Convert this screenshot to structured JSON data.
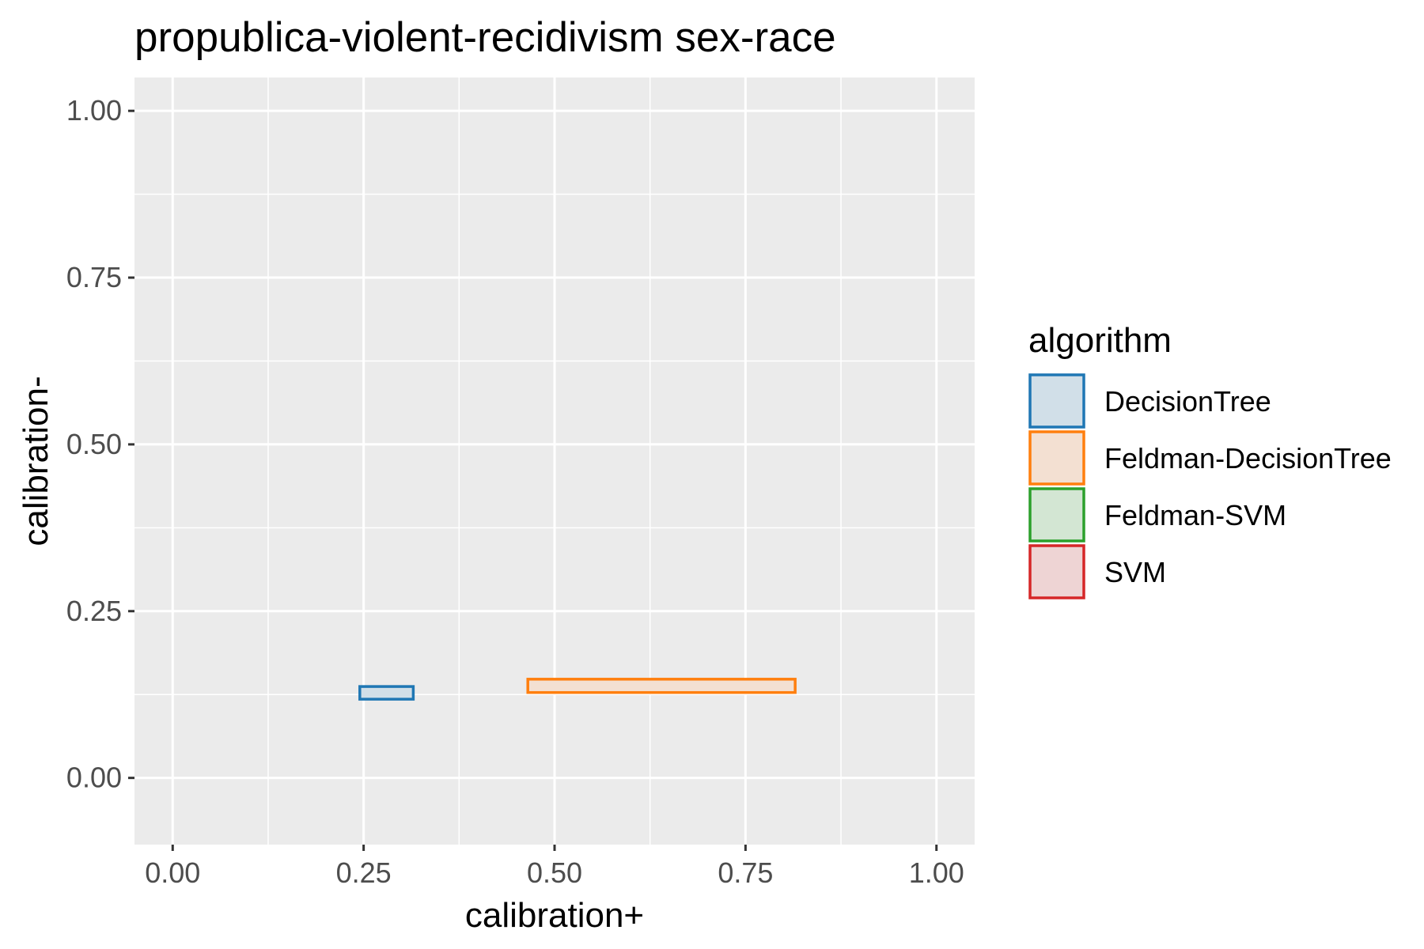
{
  "chart_data": {
    "type": "box",
    "title": "propublica-violent-recidivism sex-race",
    "xlabel": "calibration+",
    "ylabel": "calibration-",
    "xlim": [
      -0.05,
      1.05
    ],
    "ylim": [
      -0.1,
      1.05
    ],
    "x_ticks": [
      "0.00",
      "0.25",
      "0.50",
      "0.75",
      "1.00"
    ],
    "y_ticks": [
      "0.00",
      "0.25",
      "0.50",
      "0.75",
      "1.00"
    ],
    "x_tick_values": [
      0,
      0.25,
      0.5,
      0.75,
      1.0
    ],
    "y_tick_values": [
      0,
      0.25,
      0.5,
      0.75,
      1.0
    ],
    "grid": true,
    "legend": {
      "title": "algorithm",
      "placement": "right",
      "entries": [
        {
          "name": "DecisionTree",
          "color": "#1f77b4",
          "fill": "#d1dfe8"
        },
        {
          "name": "Feldman-DecisionTree",
          "color": "#ff7f0e",
          "fill": "#f3e0d2"
        },
        {
          "name": "Feldman-SVM",
          "color": "#2ca02c",
          "fill": "#d3e6d3"
        },
        {
          "name": "SVM",
          "color": "#d62728",
          "fill": "#eed4d4"
        }
      ]
    },
    "series": [
      {
        "name": "DecisionTree",
        "x_min": 0.245,
        "x_max": 0.315,
        "y_min": 0.118,
        "y_max": 0.137
      },
      {
        "name": "Feldman-DecisionTree",
        "x_min": 0.465,
        "x_max": 0.815,
        "y_min": 0.128,
        "y_max": 0.148
      }
    ]
  }
}
